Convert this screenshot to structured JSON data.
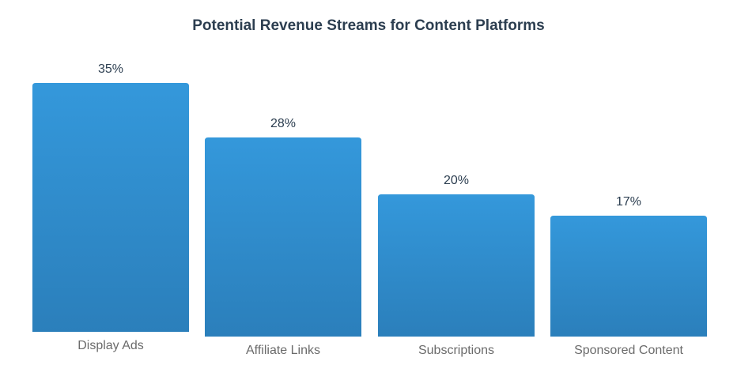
{
  "chart_data": {
    "type": "bar",
    "title": "Potential Revenue Streams for Content Platforms",
    "categories": [
      "Display Ads",
      "Affiliate Links",
      "Subscriptions",
      "Sponsored Content"
    ],
    "values": [
      35,
      28,
      20,
      17
    ],
    "value_labels": [
      "35%",
      "28%",
      "20%",
      "17%"
    ],
    "unit": "%",
    "xlabel": "",
    "ylabel": "",
    "ylim": [
      0,
      35
    ],
    "grid": false,
    "legend": "none",
    "colors": {
      "bar_top": "#3498db",
      "bar_bottom": "#2b7fbb",
      "title": "#2c3e50",
      "value_label": "#2c3e50",
      "category_label": "#6b6b6b"
    }
  }
}
